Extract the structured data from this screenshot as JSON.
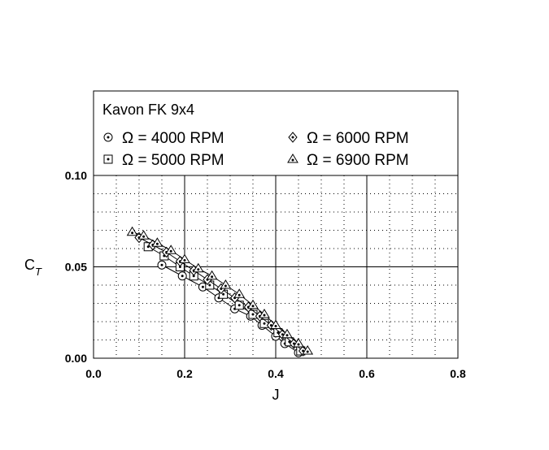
{
  "chart_data": {
    "type": "scatter",
    "title": "Kavon FK 9x4",
    "xlabel": "J",
    "ylabel": "C",
    "ylabel_sub": "T",
    "xlim": [
      0.0,
      0.8
    ],
    "ylim": [
      0.0,
      0.1
    ],
    "x_ticks": [
      0.0,
      0.2,
      0.4,
      0.6,
      0.8
    ],
    "x_tick_labels": [
      "0.0",
      "0.2",
      "0.4",
      "0.6",
      "0.8"
    ],
    "y_ticks": [
      0.0,
      0.05,
      0.1
    ],
    "y_tick_labels": [
      "0.00",
      "0.05",
      "0.10"
    ],
    "grid": true,
    "legend_position": "top",
    "series": [
      {
        "name": "Ω = 4000 RPM",
        "marker": "circle-dot",
        "x": [
          0.15,
          0.195,
          0.24,
          0.275,
          0.31,
          0.345,
          0.37,
          0.4,
          0.42,
          0.45
        ],
        "y": [
          0.051,
          0.045,
          0.039,
          0.033,
          0.027,
          0.023,
          0.018,
          0.012,
          0.008,
          0.003
        ]
      },
      {
        "name": "Ω = 5000 RPM",
        "marker": "square-dot",
        "x": [
          0.12,
          0.155,
          0.19,
          0.22,
          0.255,
          0.285,
          0.32,
          0.35,
          0.375,
          0.405,
          0.43,
          0.455
        ],
        "y": [
          0.061,
          0.056,
          0.05,
          0.045,
          0.04,
          0.035,
          0.029,
          0.024,
          0.019,
          0.014,
          0.009,
          0.004
        ]
      },
      {
        "name": "Ω = 6000 RPM",
        "marker": "diamond-dot",
        "x": [
          0.1,
          0.13,
          0.16,
          0.19,
          0.22,
          0.25,
          0.28,
          0.31,
          0.34,
          0.365,
          0.39,
          0.415,
          0.44,
          0.46
        ],
        "y": [
          0.066,
          0.062,
          0.058,
          0.053,
          0.048,
          0.043,
          0.038,
          0.033,
          0.028,
          0.023,
          0.018,
          0.013,
          0.008,
          0.004
        ]
      },
      {
        "name": "Ω = 6900 RPM",
        "marker": "triangle-dot",
        "x": [
          0.085,
          0.11,
          0.14,
          0.17,
          0.2,
          0.23,
          0.26,
          0.29,
          0.32,
          0.35,
          0.375,
          0.4,
          0.425,
          0.45,
          0.47
        ],
        "y": [
          0.069,
          0.067,
          0.063,
          0.059,
          0.054,
          0.049,
          0.045,
          0.04,
          0.035,
          0.029,
          0.024,
          0.018,
          0.013,
          0.008,
          0.004
        ]
      }
    ]
  }
}
